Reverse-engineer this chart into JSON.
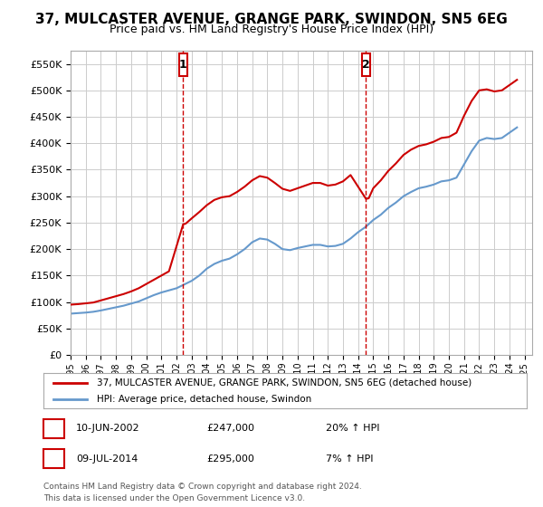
{
  "title": "37, MULCASTER AVENUE, GRANGE PARK, SWINDON, SN5 6EG",
  "subtitle": "Price paid vs. HM Land Registry's House Price Index (HPI)",
  "legend_line1": "37, MULCASTER AVENUE, GRANGE PARK, SWINDON, SN5 6EG (detached house)",
  "legend_line2": "HPI: Average price, detached house, Swindon",
  "footnote1": "Contains HM Land Registry data © Crown copyright and database right 2024.",
  "footnote2": "This data is licensed under the Open Government Licence v3.0.",
  "marker1_date": "10-JUN-2002",
  "marker1_price": "£247,000",
  "marker1_hpi": "20% ↑ HPI",
  "marker1_label": "1",
  "marker2_date": "09-JUL-2014",
  "marker2_price": "£295,000",
  "marker2_hpi": "7% ↑ HPI",
  "marker2_label": "2",
  "xlim_start": 1995.0,
  "xlim_end": 2025.5,
  "ylim_min": 0,
  "ylim_max": 575000,
  "yticks": [
    0,
    50000,
    100000,
    150000,
    200000,
    250000,
    300000,
    350000,
    400000,
    450000,
    500000,
    550000
  ],
  "ytick_labels": [
    "£0",
    "£50K",
    "£100K",
    "£150K",
    "£200K",
    "£250K",
    "£300K",
    "£350K",
    "£400K",
    "£450K",
    "£500K",
    "£550K"
  ],
  "xticks": [
    1995,
    1996,
    1997,
    1998,
    1999,
    2000,
    2001,
    2002,
    2003,
    2004,
    2005,
    2006,
    2007,
    2008,
    2009,
    2010,
    2011,
    2012,
    2013,
    2014,
    2015,
    2016,
    2017,
    2018,
    2019,
    2020,
    2021,
    2022,
    2023,
    2024,
    2025
  ],
  "red_color": "#cc0000",
  "blue_color": "#6699cc",
  "marker_box_color": "#cc0000",
  "bg_color": "#ffffff",
  "grid_color": "#cccccc",
  "title_fontsize": 11,
  "subtitle_fontsize": 9,
  "marker1_x": 2002.44,
  "marker2_x": 2014.52,
  "marker1_y": 247000,
  "marker2_y": 295000
}
